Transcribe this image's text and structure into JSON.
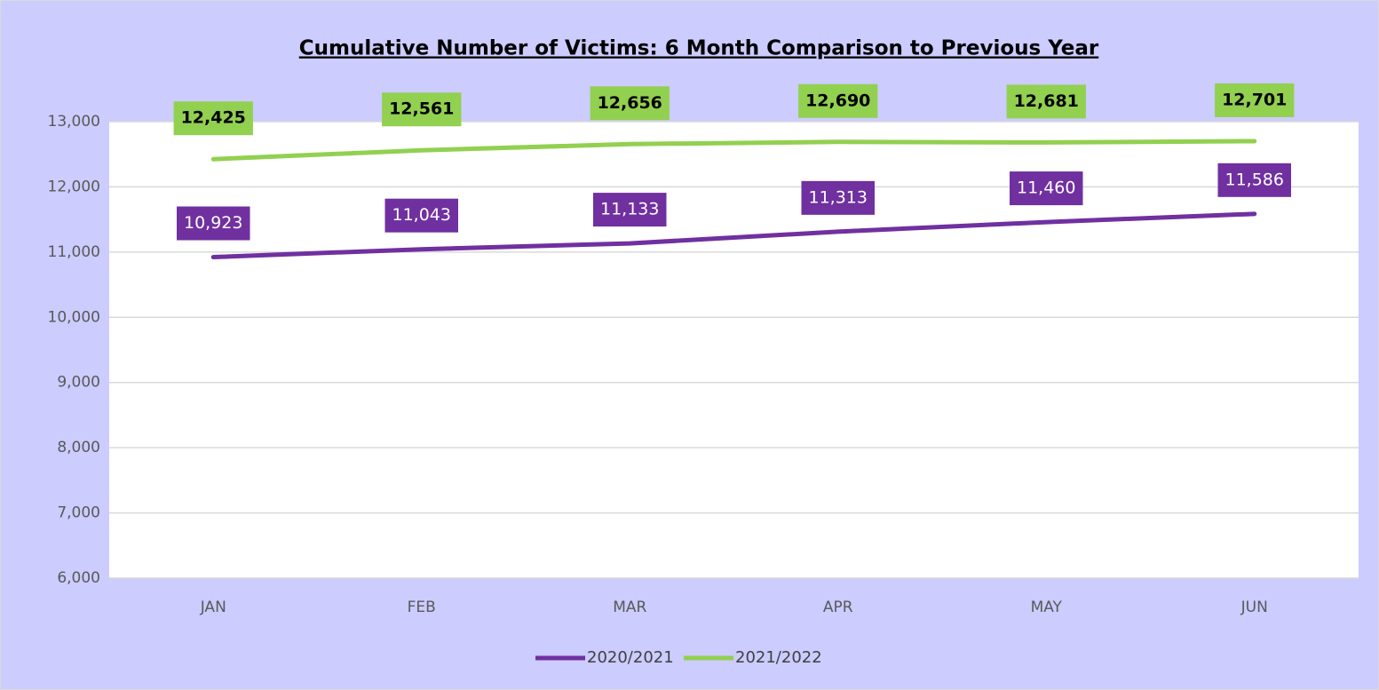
{
  "chart_data": {
    "type": "line",
    "title": "Cumulative Number of Victims:  6 Month Comparison  to Previous Year",
    "categories": [
      "JAN",
      "FEB",
      "MAR",
      "APR",
      "MAY",
      "JUN"
    ],
    "series": [
      {
        "name": "2020/2021",
        "color": "#7030a0",
        "label_text_color": "#ffffff",
        "values": [
          10923,
          11043,
          11133,
          11313,
          11460,
          11586
        ],
        "value_labels": [
          "10,923",
          "11,043",
          "11,133",
          "11,313",
          "11,460",
          "11,586"
        ]
      },
      {
        "name": "2021/2022",
        "color": "#92d050",
        "label_text_color": "#000000",
        "values": [
          12425,
          12561,
          12656,
          12690,
          12681,
          12701
        ],
        "value_labels": [
          "12,425",
          "12,561",
          "12,656",
          "12,690",
          "12,681",
          "12,701"
        ]
      }
    ],
    "ylim": [
      6000,
      13000
    ],
    "yticks": [
      {
        "value": 6000,
        "label": "6,000"
      },
      {
        "value": 7000,
        "label": "7,000"
      },
      {
        "value": 8000,
        "label": "8,000"
      },
      {
        "value": 9000,
        "label": "9,000"
      },
      {
        "value": 10000,
        "label": "10,000"
      },
      {
        "value": 11000,
        "label": "11,000"
      },
      {
        "value": 12000,
        "label": "12,000"
      },
      {
        "value": 13000,
        "label": "13,000"
      }
    ],
    "grid": true,
    "legend": "bottom"
  }
}
